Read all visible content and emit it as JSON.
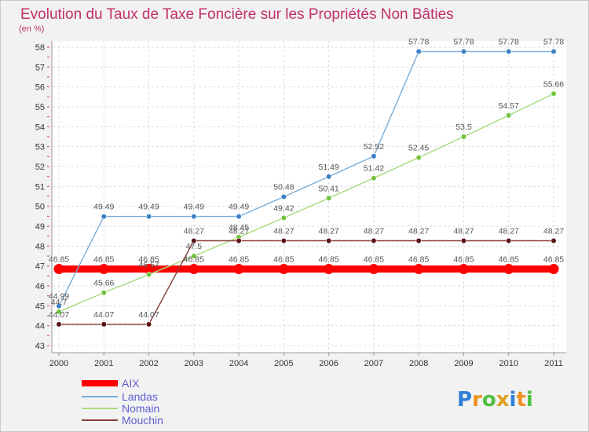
{
  "header": {
    "title": "Evolution du Taux de Taxe Foncière sur les Propriétés Non Bâties",
    "unit": "(en %)"
  },
  "brand": {
    "letters": [
      "P",
      "r",
      "o",
      "x",
      "i",
      "t",
      "i"
    ],
    "colors": [
      "#2f7fd6",
      "#f09020",
      "#4fbf3f",
      "#e0a020",
      "#2f7fd6",
      "#f09020",
      "#4fbf3f"
    ]
  },
  "chart_data": {
    "type": "line",
    "title": "Evolution du Taux de Taxe Foncière sur les Propriétés Non Bâties",
    "ylabel": "(en %)",
    "xlabel": "",
    "x": [
      "2000",
      "2001",
      "2002",
      "2003",
      "2004",
      "2005",
      "2006",
      "2007",
      "2008",
      "2009",
      "2010",
      "2011"
    ],
    "ylim": [
      43,
      58
    ],
    "yticks": [
      43,
      44,
      45,
      46,
      47,
      48,
      49,
      50,
      51,
      52,
      53,
      54,
      55,
      56,
      57,
      58
    ],
    "grid": true,
    "legend_position": "bottom-left",
    "series": [
      {
        "name": "AIX",
        "color": "#ff0000",
        "values": [
          46.85,
          46.85,
          46.85,
          46.85,
          46.85,
          46.85,
          46.85,
          46.85,
          46.85,
          46.85,
          46.85,
          46.85
        ],
        "labels": [
          "46.85",
          "46.85",
          "46.85",
          "46.85",
          "46.85",
          "46.85",
          "46.85",
          "46.85",
          "46.85",
          "46.85",
          "46.85",
          "46.85"
        ]
      },
      {
        "name": "Landas",
        "color": "#7aaed8",
        "marker": "#3b7fc4",
        "values": [
          44.99,
          49.49,
          49.49,
          49.49,
          49.49,
          50.48,
          51.49,
          52.52,
          57.78,
          57.78,
          57.78,
          57.78
        ],
        "labels": [
          "44.99",
          "49.49",
          "49.49",
          "49.49",
          "49.49",
          "50.48",
          "51.49",
          "52.52",
          "57.78",
          "57.78",
          "57.78",
          "57.78"
        ]
      },
      {
        "name": "Nomain",
        "color": "#a6dc7e",
        "marker": "#72c43c",
        "values": [
          44.7,
          45.66,
          46.57,
          47.5,
          48.45,
          49.42,
          50.41,
          51.42,
          52.45,
          53.5,
          54.57,
          55.66
        ],
        "labels": [
          "44.7",
          "45.66",
          "46.57",
          "47.5",
          "48.45",
          "49.42",
          "50.41",
          "51.42",
          "52.45",
          "53.5",
          "54.57",
          "55.66"
        ]
      },
      {
        "name": "Mouchin",
        "color": "#8a3a3a",
        "marker": "#5a1414",
        "values": [
          44.07,
          44.07,
          44.07,
          48.27,
          48.27,
          48.27,
          48.27,
          48.27,
          48.27,
          48.27,
          48.27,
          48.27
        ],
        "labels": [
          "44.07",
          "44.07",
          "44.07",
          "48.27",
          "48.27",
          "48.27",
          "48.27",
          "48.27",
          "48.27",
          "48.27",
          "48.27",
          "48.27"
        ]
      }
    ]
  }
}
